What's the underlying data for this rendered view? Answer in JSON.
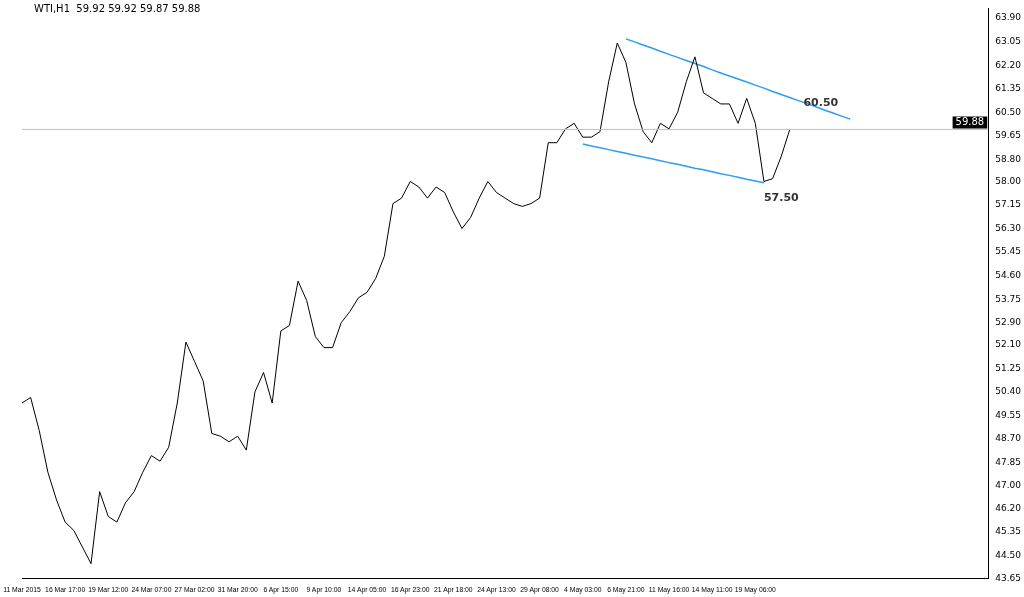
{
  "chart_data": {
    "type": "line",
    "title": "WTI,H1  59.92 59.92 59.87 59.88",
    "categories": [
      "11 Mar 2015",
      null,
      null,
      null,
      null,
      "16 Mar 17:00",
      null,
      null,
      null,
      null,
      "19 Mar 12:00",
      null,
      null,
      null,
      null,
      "24 Mar 07:00",
      null,
      null,
      null,
      null,
      "27 Mar 02:00",
      null,
      null,
      null,
      null,
      "31 Mar 20:00",
      null,
      null,
      null,
      null,
      "6 Apr 15:00",
      null,
      null,
      null,
      null,
      "9 Apr 10:00",
      null,
      null,
      null,
      null,
      "14 Apr 05:00",
      null,
      null,
      null,
      null,
      "16 Apr 23:00",
      null,
      null,
      null,
      null,
      "21 Apr 18:00",
      null,
      null,
      null,
      null,
      "24 Apr 13:00",
      null,
      null,
      null,
      null,
      "29 Apr 08:00",
      null,
      null,
      null,
      null,
      "4 May 03:00",
      null,
      null,
      null,
      null,
      "6 May 21:00",
      null,
      null,
      null,
      null,
      "11 May 16:00",
      null,
      null,
      null,
      null,
      "14 May 11:00",
      null,
      null,
      null,
      null,
      "19 May 06:00",
      null,
      null,
      null,
      null,
      null,
      null,
      null,
      null,
      null,
      null,
      null,
      null,
      null,
      null,
      null,
      null,
      null,
      null,
      null,
      null,
      null,
      null,
      null,
      null,
      null,
      null,
      null
    ],
    "series": [
      {
        "color": "#000000",
        "values": [
          50.0,
          50.2,
          49.0,
          47.5,
          46.5,
          45.7,
          45.4,
          44.8,
          44.2,
          46.8,
          45.9,
          45.7,
          46.4,
          46.8,
          47.5,
          48.1,
          47.9,
          48.4,
          50.0,
          52.2,
          51.5,
          50.8,
          48.9,
          48.8,
          48.6,
          48.8,
          48.3,
          50.4,
          51.1,
          50.0,
          52.6,
          52.8,
          54.4,
          53.7,
          52.4,
          52.0,
          52.0,
          52.9,
          53.3,
          53.8,
          54.0,
          54.5,
          55.3,
          57.2,
          57.4,
          58.0,
          57.8,
          57.4,
          57.8,
          57.6,
          56.9,
          56.3,
          56.7,
          57.4,
          58.0,
          57.6,
          57.4,
          57.2,
          57.1,
          57.2,
          57.4,
          59.4,
          59.4,
          59.9,
          60.1,
          59.6,
          59.6,
          59.8,
          61.6,
          63.0,
          62.3,
          60.8,
          59.8,
          59.4,
          60.1,
          59.9,
          60.5,
          61.6,
          62.5,
          61.2,
          61.0,
          60.8,
          60.8,
          60.1,
          61.0,
          60.1,
          58.0,
          58.1,
          58.9,
          59.88,
          null,
          null,
          null,
          null,
          null,
          null,
          null,
          null,
          null,
          null,
          null,
          null,
          null,
          null,
          null,
          null,
          null,
          null,
          null,
          null,
          null,
          null,
          null
        ]
      },
      {
        "name": "60.50",
        "color": "#2a9df4",
        "values": [
          null,
          null,
          null,
          null,
          null,
          null,
          null,
          null,
          null,
          null,
          null,
          null,
          null,
          null,
          null,
          null,
          null,
          null,
          null,
          null,
          null,
          null,
          null,
          null,
          null,
          null,
          null,
          null,
          null,
          null,
          null,
          null,
          null,
          null,
          null,
          null,
          null,
          null,
          null,
          null,
          null,
          null,
          null,
          null,
          null,
          null,
          null,
          null,
          null,
          null,
          null,
          null,
          null,
          null,
          null,
          null,
          null,
          null,
          null,
          null,
          null,
          null,
          null,
          null,
          null,
          null,
          null,
          null,
          null,
          null,
          63.15,
          63.04,
          62.93,
          62.82,
          62.7,
          62.59,
          62.48,
          62.37,
          62.26,
          62.15,
          62.03,
          61.92,
          61.81,
          61.7,
          61.59,
          61.48,
          61.37,
          61.25,
          61.14,
          61.03,
          60.92,
          60.81,
          60.7,
          60.58,
          60.47,
          60.36,
          60.25,
          null,
          null,
          null,
          null,
          null,
          null,
          null,
          null,
          null,
          null,
          null,
          null,
          null,
          null,
          null,
          null
        ]
      },
      {
        "name": "57.50",
        "color": "#2a9df4",
        "values": [
          null,
          null,
          null,
          null,
          null,
          null,
          null,
          null,
          null,
          null,
          null,
          null,
          null,
          null,
          null,
          null,
          null,
          null,
          null,
          null,
          null,
          null,
          null,
          null,
          null,
          null,
          null,
          null,
          null,
          null,
          null,
          null,
          null,
          null,
          null,
          null,
          null,
          null,
          null,
          null,
          null,
          null,
          null,
          null,
          null,
          null,
          null,
          null,
          null,
          null,
          null,
          null,
          null,
          null,
          null,
          null,
          null,
          null,
          null,
          null,
          null,
          null,
          null,
          null,
          null,
          59.35,
          59.28,
          59.22,
          59.15,
          59.08,
          59.02,
          58.95,
          58.88,
          58.82,
          58.75,
          58.68,
          58.62,
          58.55,
          58.48,
          58.42,
          58.35,
          58.28,
          58.22,
          58.15,
          58.08,
          58.02,
          57.95,
          null,
          null,
          null,
          null,
          null,
          null,
          null,
          null,
          null,
          null,
          null,
          null,
          null,
          null,
          null,
          null,
          null,
          null,
          null,
          null,
          null,
          null,
          null,
          null,
          null,
          null
        ]
      }
    ],
    "ylim": [
      43.65,
      64.25
    ],
    "yticks": [
      {
        "value": 63.9,
        "label": "63.90"
      },
      63.05,
      {
        "value": 62.2,
        "label": "62.20"
      },
      61.35,
      {
        "value": 60.5,
        "label": "60.50"
      },
      59.65,
      {
        "value": 58.8,
        "label": "58.80"
      },
      {
        "value": 58.0,
        "label": "58.00"
      },
      57.15,
      {
        "value": 56.3,
        "label": "56.30"
      },
      55.45,
      {
        "value": 54.6,
        "label": "54.60"
      },
      53.75,
      {
        "value": 52.9,
        "label": "52.90"
      },
      {
        "value": 52.1,
        "label": "52.10"
      },
      51.25,
      {
        "value": 50.4,
        "label": "50.40"
      },
      49.55,
      {
        "value": 48.7,
        "label": "48.70"
      },
      47.85,
      {
        "value": 47.0,
        "label": "47.00"
      },
      {
        "value": 46.2,
        "label": "46.20"
      },
      45.35,
      {
        "value": 44.5,
        "label": "44.50"
      },
      43.65
    ],
    "ref_lines": [
      {
        "axis": "y",
        "value": 59.88,
        "label": "59.88",
        "color": "#c0c0c0"
      }
    ],
    "grid": false,
    "legend": false,
    "marker": "none",
    "line_style": "solid"
  }
}
